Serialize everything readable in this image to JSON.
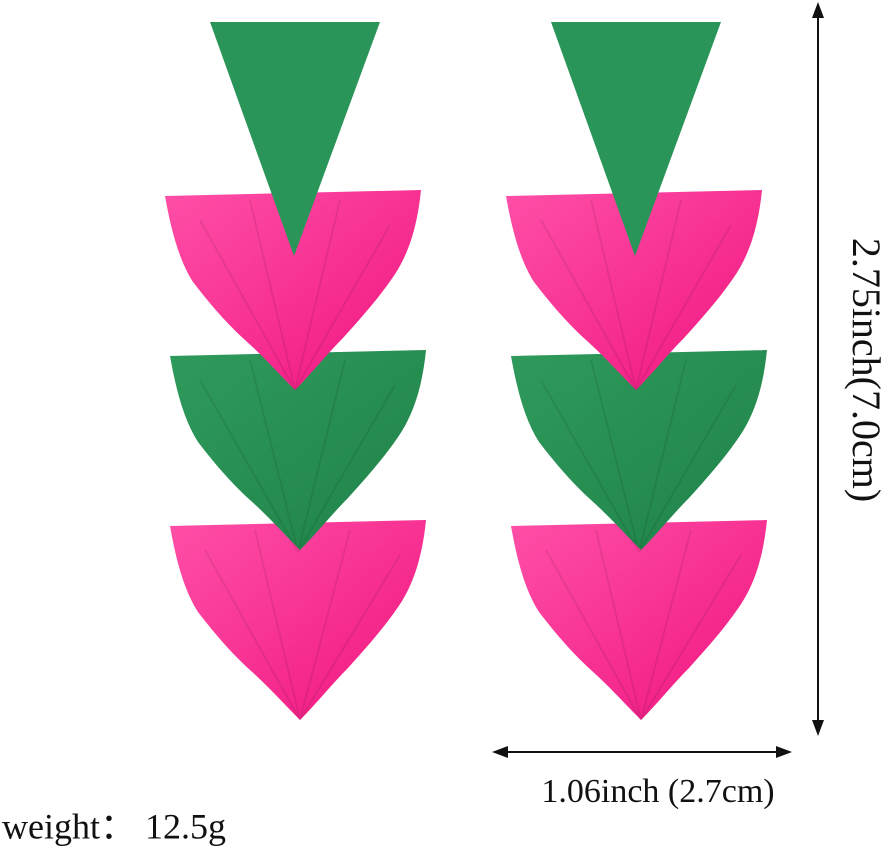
{
  "dimensions": {
    "height": "2.75inch(7.0cm)",
    "width": "1.06inch (2.7cm)"
  },
  "weight": "weight： 12.5g"
}
